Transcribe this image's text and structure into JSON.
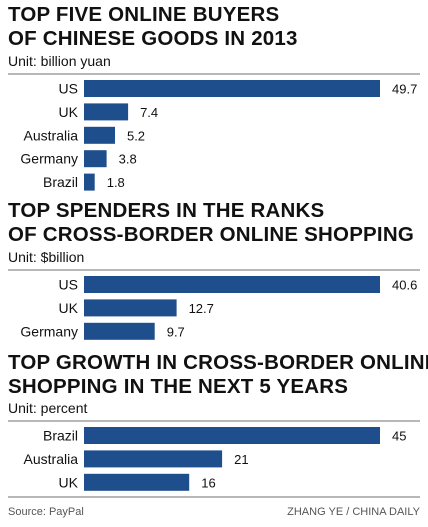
{
  "colors": {
    "bar": "#1f4e8c",
    "text": "#111111",
    "rule": "#b8b8b8"
  },
  "chart_data": [
    {
      "type": "bar",
      "orientation": "horizontal",
      "title_lines": [
        "TOP FIVE ONLINE BUYERS",
        "OF CHINESE GOODS IN 2013"
      ],
      "unit": "Unit: billion yuan",
      "categories": [
        "US",
        "UK",
        "Australia",
        "Germany",
        "Brazil"
      ],
      "values": [
        49.7,
        7.4,
        5.2,
        3.8,
        1.8
      ],
      "labels": [
        "49.7",
        "7.4",
        "5.2",
        "3.8",
        "1.8"
      ],
      "xlim": [
        0,
        49.7
      ]
    },
    {
      "type": "bar",
      "orientation": "horizontal",
      "title_lines": [
        "TOP SPENDERS IN THE RANKS",
        "OF CROSS-BORDER ONLINE SHOPPING"
      ],
      "unit": "Unit: $billion",
      "categories": [
        "US",
        "UK",
        "Germany"
      ],
      "values": [
        40.6,
        12.7,
        9.7
      ],
      "labels": [
        "40.6",
        "12.7",
        "9.7"
      ],
      "xlim": [
        0,
        40.6
      ]
    },
    {
      "type": "bar",
      "orientation": "horizontal",
      "title_lines": [
        "TOP GROWTH IN CROSS-BORDER ONLINE",
        "SHOPPING IN THE NEXT 5 YEARS"
      ],
      "unit": "Unit: percent",
      "categories": [
        "Brazil",
        "Australia",
        "UK"
      ],
      "values": [
        45,
        21,
        16
      ],
      "labels": [
        "45",
        "21",
        "16"
      ],
      "xlim": [
        0,
        45
      ]
    }
  ],
  "footer": {
    "source": "Source: PayPal",
    "credit": "ZHANG YE / CHINA DAILY"
  }
}
